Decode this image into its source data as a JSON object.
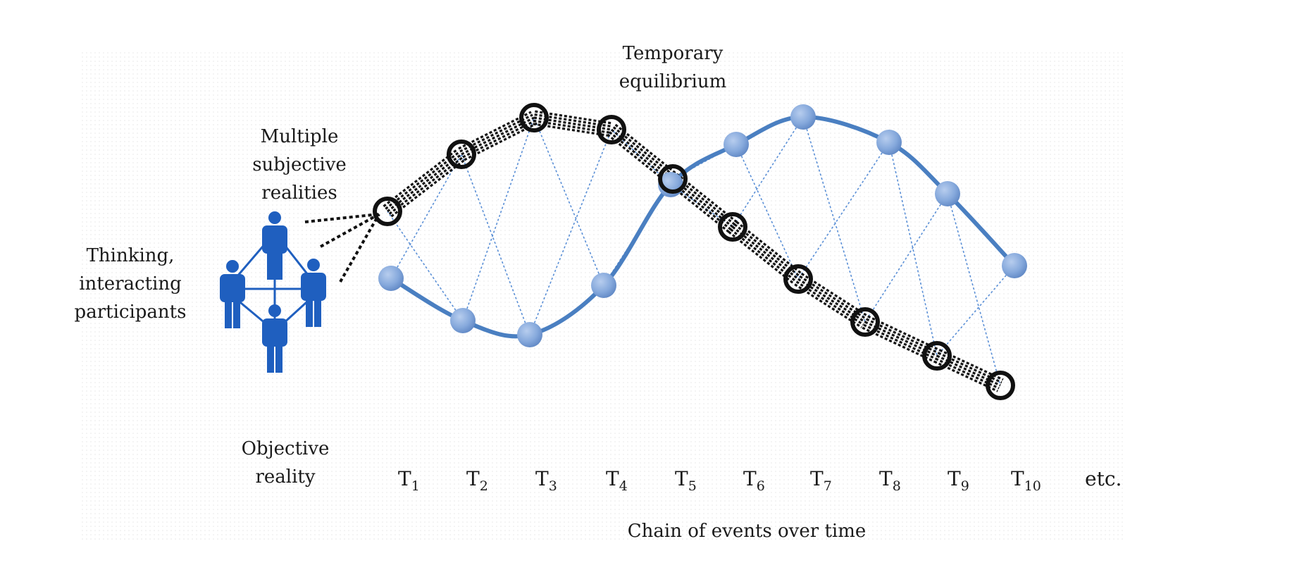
{
  "labels": {
    "temporary_equilibrium_line1": "Temporary",
    "temporary_equilibrium_line2": "equilibrium",
    "multiple_line1": "Multiple",
    "multiple_line2": "subjective",
    "multiple_line3": "realities",
    "thinking_line1": "Thinking,",
    "thinking_line2": "interacting",
    "thinking_line3": "participants",
    "objective_line1": "Objective",
    "objective_line2": "reality",
    "axis_title": "Chain of events over time"
  },
  "time_ticks": [
    {
      "base": "T",
      "sub": "1"
    },
    {
      "base": "T",
      "sub": "2"
    },
    {
      "base": "T",
      "sub": "3"
    },
    {
      "base": "T",
      "sub": "4"
    },
    {
      "base": "T",
      "sub": "5"
    },
    {
      "base": "T",
      "sub": "6"
    },
    {
      "base": "T",
      "sub": "7"
    },
    {
      "base": "T",
      "sub": "8"
    },
    {
      "base": "T",
      "sub": "9"
    },
    {
      "base": "T",
      "sub": "10"
    }
  ],
  "etc_label": "etc.",
  "colors": {
    "objective_curve": "#4a7fc1",
    "objective_node": "#8aaee0",
    "cross_link": "#5a8fd6",
    "subjective_path": "#111111",
    "participant_icon": "#1f5fbf"
  },
  "icons": {
    "participants": "group-of-people-icon"
  }
}
